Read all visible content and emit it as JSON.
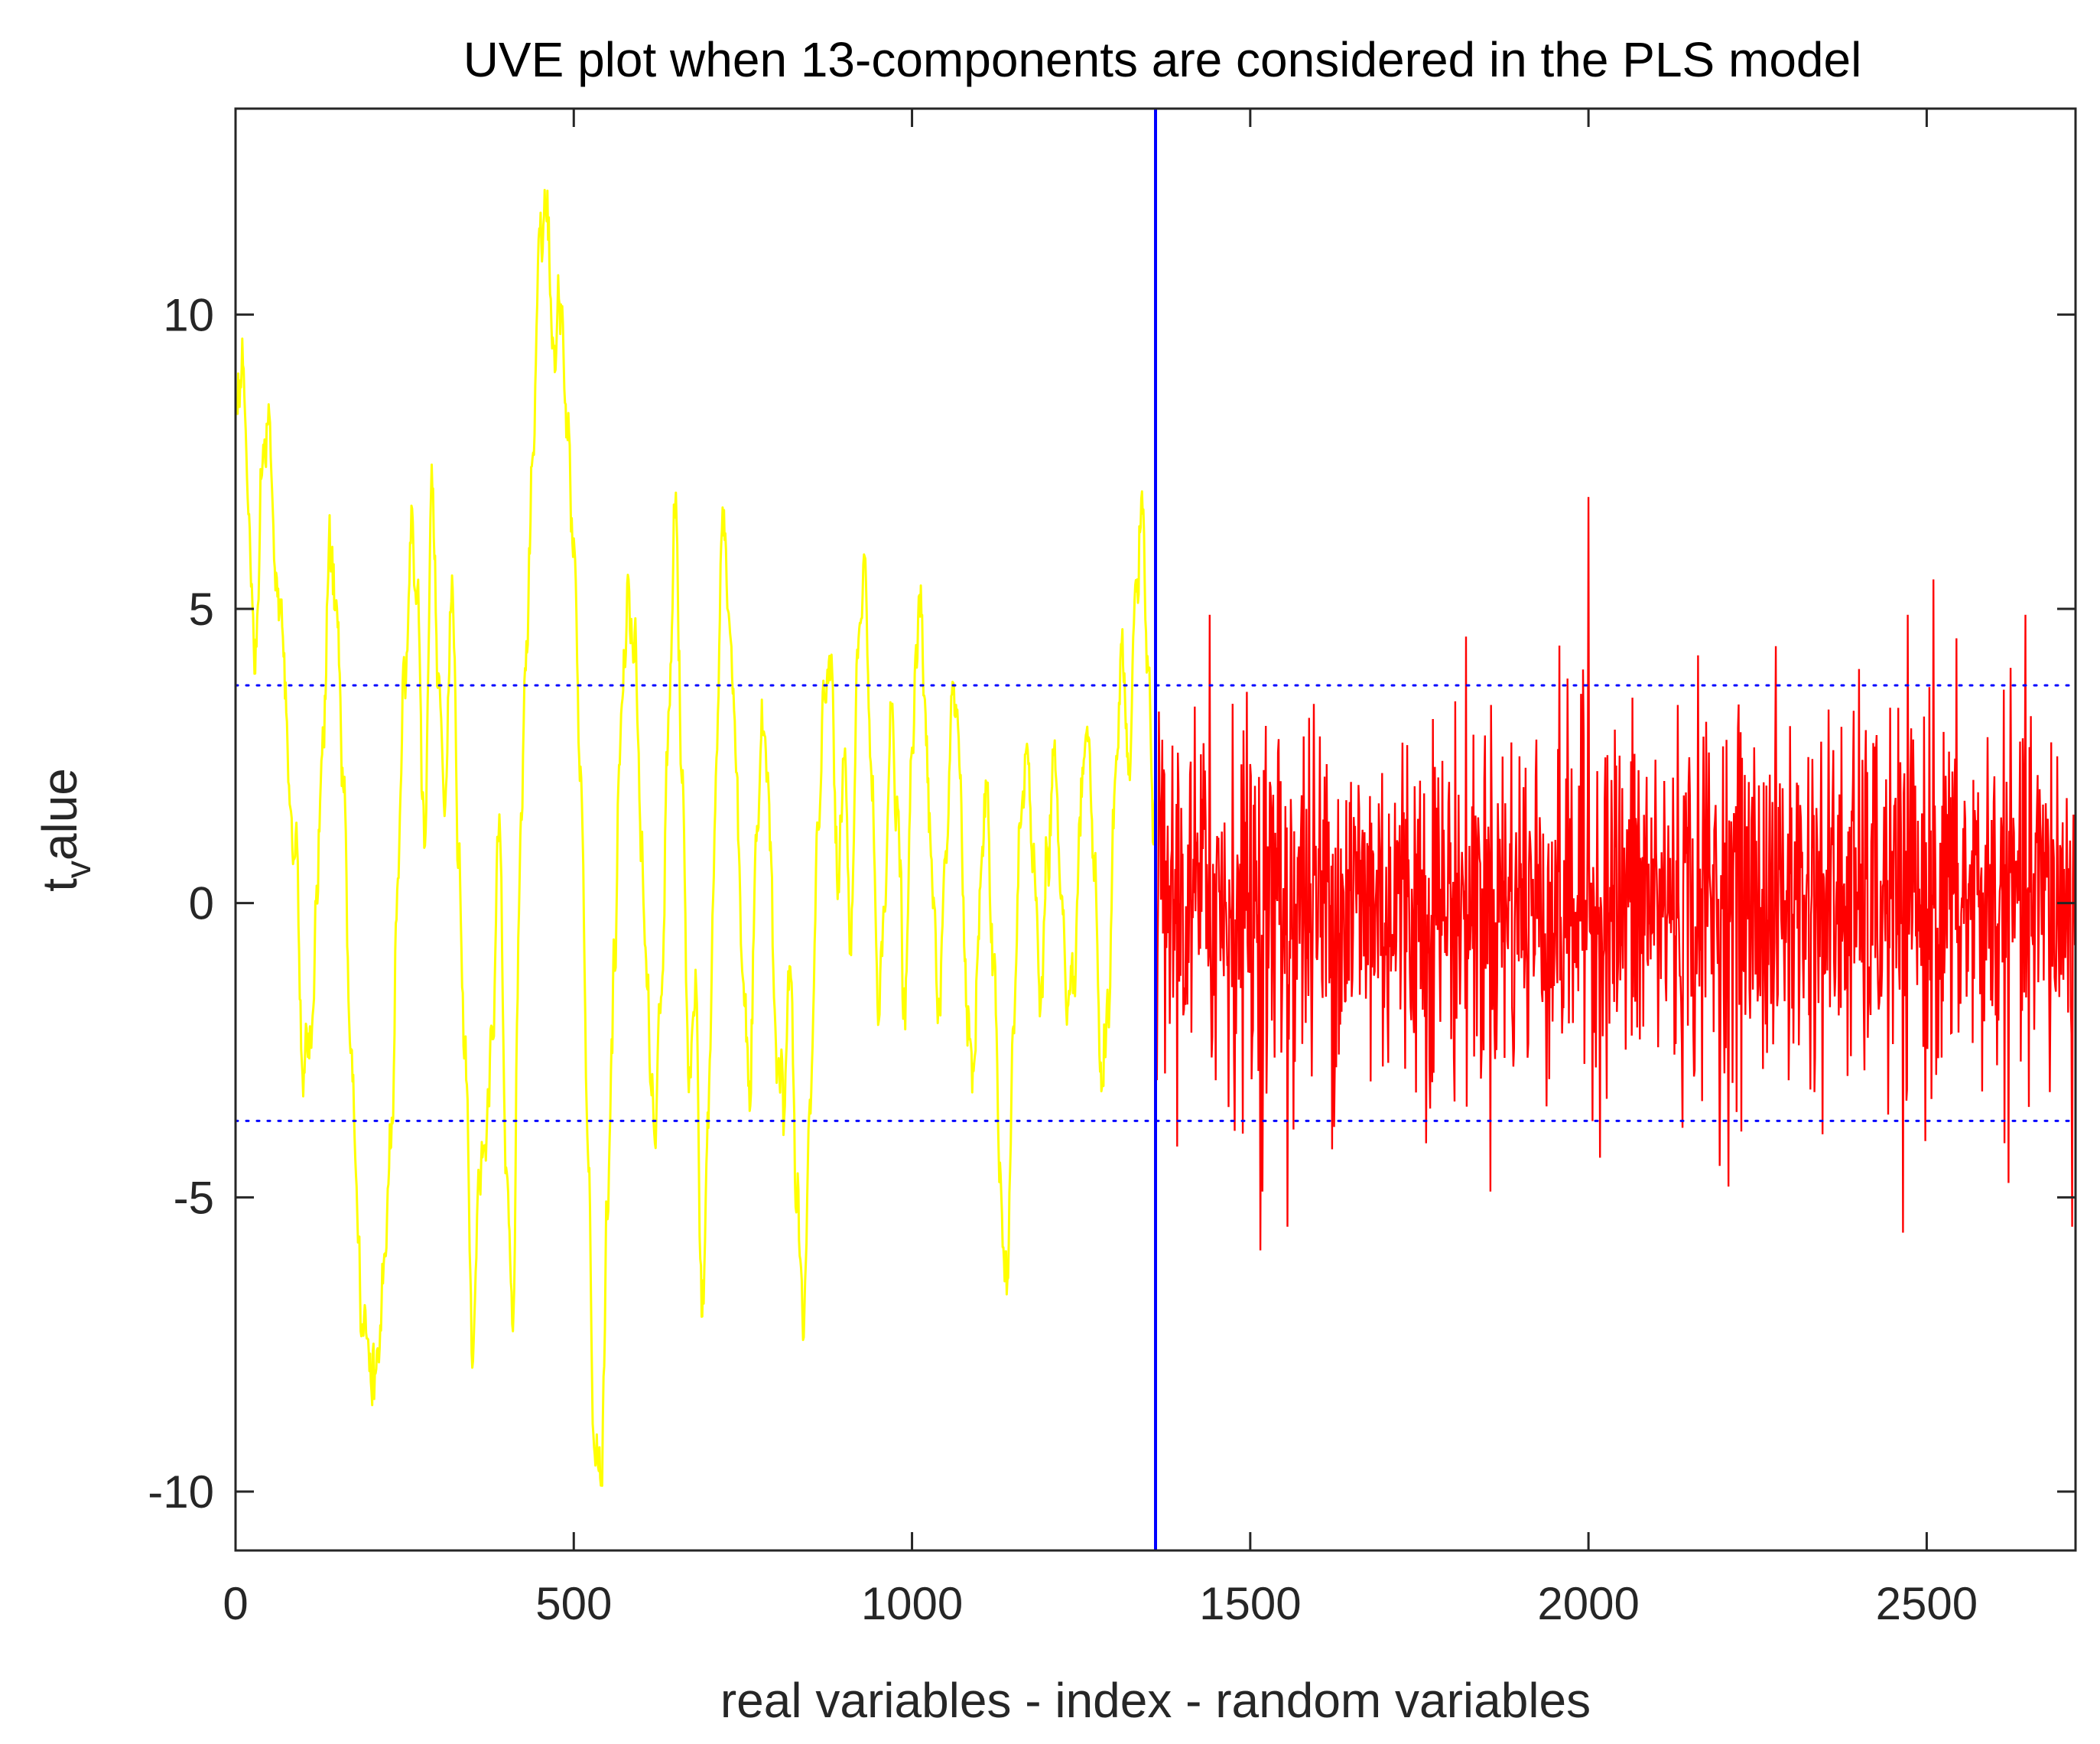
{
  "chart_data": {
    "type": "line",
    "title": "UVE plot when 13-components are considered in the PLS model",
    "xlabel": "real variables - index - random variables",
    "ylabel": {
      "base": "t",
      "subscript": "v",
      "rest": "alue"
    },
    "xlim": [
      0,
      2720
    ],
    "ylim": [
      -11,
      13.5
    ],
    "xticks": [
      0,
      500,
      1000,
      1500,
      2000,
      2500
    ],
    "xtick_labels": [
      "0",
      "500",
      "1000",
      "1500",
      "2000",
      "2500"
    ],
    "yticks": [
      -10,
      -5,
      0,
      5,
      10
    ],
    "ytick_labels": [
      "-10",
      "-5",
      "0",
      "5",
      "10"
    ],
    "grid": false,
    "split_index": 1360,
    "threshold": 3.7,
    "colors": {
      "real": "#ffff00",
      "random": "#ff0000",
      "divider": "#0000ff",
      "threshold": "#0000ff",
      "axes": "#262626"
    },
    "series": [
      {
        "name": "real variables",
        "color": "#ffff00",
        "x_range": [
          1,
          1360
        ],
        "envelope": [
          [
            0,
            8.5
          ],
          [
            10,
            9.2
          ],
          [
            20,
            6.5
          ],
          [
            30,
            3.5
          ],
          [
            40,
            7.5
          ],
          [
            50,
            8.2
          ],
          [
            60,
            5.2
          ],
          [
            70,
            4.5
          ],
          [
            80,
            2.0
          ],
          [
            90,
            0.5
          ],
          [
            100,
            -3.0
          ],
          [
            110,
            -2.5
          ],
          [
            120,
            0.0
          ],
          [
            130,
            3.2
          ],
          [
            140,
            6.0
          ],
          [
            150,
            4.8
          ],
          [
            160,
            2.0
          ],
          [
            170,
            -2.5
          ],
          [
            180,
            -5.5
          ],
          [
            190,
            -7.5
          ],
          [
            200,
            -8.1
          ],
          [
            210,
            -8.0
          ],
          [
            220,
            -6.0
          ],
          [
            230,
            -4.0
          ],
          [
            240,
            0.5
          ],
          [
            250,
            4.0
          ],
          [
            260,
            6.5
          ],
          [
            270,
            5.0
          ],
          [
            280,
            1.0
          ],
          [
            290,
            7.5
          ],
          [
            300,
            4.0
          ],
          [
            310,
            1.5
          ],
          [
            320,
            5.5
          ],
          [
            330,
            1.0
          ],
          [
            340,
            -3.0
          ],
          [
            350,
            -7.5
          ],
          [
            360,
            -4.5
          ],
          [
            370,
            -4.0
          ],
          [
            380,
            -2.0
          ],
          [
            390,
            2.0
          ],
          [
            400,
            -4.5
          ],
          [
            410,
            -7.0
          ],
          [
            420,
            0.5
          ],
          [
            430,
            4.5
          ],
          [
            440,
            7.5
          ],
          [
            450,
            11.0
          ],
          [
            460,
            12.0
          ],
          [
            470,
            9.0
          ],
          [
            480,
            10.0
          ],
          [
            490,
            8.5
          ],
          [
            500,
            6.0
          ],
          [
            510,
            2.0
          ],
          [
            520,
            -3.5
          ],
          [
            530,
            -9.5
          ],
          [
            540,
            -9.5
          ],
          [
            550,
            -5.0
          ],
          [
            560,
            -1.0
          ],
          [
            570,
            3.0
          ],
          [
            580,
            5.0
          ],
          [
            590,
            4.5
          ],
          [
            600,
            1.0
          ],
          [
            610,
            -2.0
          ],
          [
            620,
            -4.0
          ],
          [
            630,
            -1.5
          ],
          [
            640,
            3.0
          ],
          [
            650,
            7.0
          ],
          [
            660,
            2.0
          ],
          [
            670,
            -3.0
          ],
          [
            680,
            -1.5
          ],
          [
            690,
            -7.5
          ],
          [
            700,
            -3.0
          ],
          [
            710,
            2.0
          ],
          [
            720,
            6.5
          ],
          [
            730,
            5.0
          ],
          [
            740,
            2.5
          ],
          [
            750,
            -1.0
          ],
          [
            760,
            -3.5
          ],
          [
            770,
            0.5
          ],
          [
            780,
            3.5
          ],
          [
            790,
            1.5
          ],
          [
            800,
            -2.5
          ],
          [
            810,
            -3.5
          ],
          [
            820,
            -1.0
          ],
          [
            830,
            -5.5
          ],
          [
            840,
            -7.0
          ],
          [
            850,
            -3.5
          ],
          [
            860,
            0.5
          ],
          [
            870,
            3.5
          ],
          [
            880,
            4.5
          ],
          [
            890,
            0.0
          ],
          [
            900,
            2.5
          ],
          [
            910,
            -1.0
          ],
          [
            920,
            4.0
          ],
          [
            930,
            6.0
          ],
          [
            940,
            2.0
          ],
          [
            950,
            -1.5
          ],
          [
            960,
            0.5
          ],
          [
            970,
            3.0
          ],
          [
            980,
            1.0
          ],
          [
            990,
            -2.0
          ],
          [
            1000,
            2.5
          ],
          [
            1010,
            5.0
          ],
          [
            1020,
            3.5
          ],
          [
            1030,
            0.0
          ],
          [
            1040,
            -2.0
          ],
          [
            1050,
            1.0
          ],
          [
            1060,
            4.0
          ],
          [
            1070,
            2.5
          ],
          [
            1080,
            -1.0
          ],
          [
            1090,
            -3.0
          ],
          [
            1100,
            0.0
          ],
          [
            1110,
            2.0
          ],
          [
            1120,
            -1.0
          ],
          [
            1130,
            -4.5
          ],
          [
            1140,
            -6.5
          ],
          [
            1150,
            -2.0
          ],
          [
            1160,
            1.5
          ],
          [
            1170,
            2.5
          ],
          [
            1180,
            0.5
          ],
          [
            1190,
            -1.5
          ],
          [
            1200,
            1.0
          ],
          [
            1210,
            2.5
          ],
          [
            1220,
            0.0
          ],
          [
            1230,
            -2.5
          ],
          [
            1240,
            -1.0
          ],
          [
            1250,
            1.5
          ],
          [
            1260,
            3.0
          ],
          [
            1270,
            0.5
          ],
          [
            1280,
            -3.5
          ],
          [
            1290,
            -1.5
          ],
          [
            1300,
            1.5
          ],
          [
            1310,
            4.0
          ],
          [
            1320,
            2.0
          ],
          [
            1330,
            5.0
          ],
          [
            1340,
            6.5
          ],
          [
            1350,
            3.5
          ],
          [
            1360,
            1.0
          ]
        ],
        "noise_amplitude": 0.6
      },
      {
        "name": "random variables",
        "color": "#ff0000",
        "x_range": [
          1361,
          2720
        ],
        "mean": 0,
        "std": 1.6,
        "peaks": [
          {
            "x": 2000,
            "y": 6.9
          },
          {
            "x": 2510,
            "y": 5.5
          },
          {
            "x": 1515,
            "y": -5.9
          },
          {
            "x": 1555,
            "y": -5.5
          },
          {
            "x": 2465,
            "y": -5.6
          },
          {
            "x": 2715,
            "y": -5.5
          },
          {
            "x": 1440,
            "y": 4.9
          }
        ]
      }
    ]
  }
}
